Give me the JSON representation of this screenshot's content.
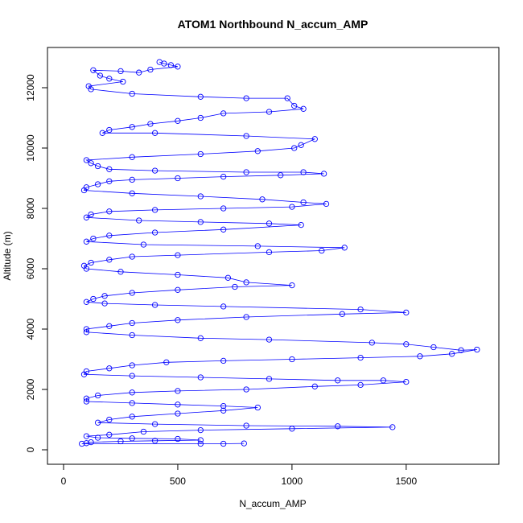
{
  "chart_data": {
    "type": "scatter",
    "title": "ATOM1 Northbound N_accum_AMP",
    "xlabel": "N_accum_AMP",
    "ylabel": "Altitude (m)",
    "xlim": [
      0,
      1850
    ],
    "ylim": [
      0,
      13000
    ],
    "x_ticks": [
      0,
      500,
      1000,
      1500
    ],
    "y_ticks": [
      0,
      2000,
      4000,
      6000,
      8000,
      10000,
      12000
    ],
    "grid": false,
    "point_style": "open-circle-with-connecting-line",
    "color": "#0000ff",
    "series": [
      {
        "values": [
          [
            420,
            12850
          ],
          [
            440,
            12800
          ],
          [
            470,
            12750
          ],
          [
            500,
            12700
          ],
          [
            380,
            12600
          ],
          [
            330,
            12500
          ],
          [
            250,
            12550
          ],
          [
            130,
            12580
          ],
          [
            160,
            12400
          ],
          [
            200,
            12300
          ],
          [
            260,
            12200
          ],
          [
            110,
            12050
          ],
          [
            120,
            11950
          ],
          [
            300,
            11800
          ],
          [
            600,
            11700
          ],
          [
            800,
            11650
          ],
          [
            980,
            11650
          ],
          [
            1010,
            11400
          ],
          [
            1050,
            11300
          ],
          [
            900,
            11200
          ],
          [
            700,
            11150
          ],
          [
            600,
            11000
          ],
          [
            500,
            10900
          ],
          [
            380,
            10800
          ],
          [
            300,
            10700
          ],
          [
            200,
            10600
          ],
          [
            170,
            10500
          ],
          [
            400,
            10500
          ],
          [
            800,
            10400
          ],
          [
            1100,
            10300
          ],
          [
            1040,
            10100
          ],
          [
            1010,
            10000
          ],
          [
            850,
            9900
          ],
          [
            600,
            9800
          ],
          [
            300,
            9700
          ],
          [
            100,
            9600
          ],
          [
            120,
            9500
          ],
          [
            150,
            9400
          ],
          [
            200,
            9300
          ],
          [
            400,
            9250
          ],
          [
            800,
            9200
          ],
          [
            1050,
            9200
          ],
          [
            1140,
            9150
          ],
          [
            950,
            9100
          ],
          [
            700,
            9050
          ],
          [
            500,
            9000
          ],
          [
            300,
            8950
          ],
          [
            200,
            8900
          ],
          [
            150,
            8800
          ],
          [
            100,
            8700
          ],
          [
            90,
            8600
          ],
          [
            300,
            8500
          ],
          [
            600,
            8400
          ],
          [
            870,
            8300
          ],
          [
            1050,
            8200
          ],
          [
            1150,
            8150
          ],
          [
            1000,
            8050
          ],
          [
            700,
            8000
          ],
          [
            400,
            7950
          ],
          [
            200,
            7900
          ],
          [
            120,
            7800
          ],
          [
            100,
            7700
          ],
          [
            330,
            7600
          ],
          [
            600,
            7550
          ],
          [
            900,
            7500
          ],
          [
            1040,
            7450
          ],
          [
            700,
            7300
          ],
          [
            400,
            7200
          ],
          [
            200,
            7100
          ],
          [
            130,
            7000
          ],
          [
            100,
            6900
          ],
          [
            350,
            6800
          ],
          [
            850,
            6750
          ],
          [
            1230,
            6700
          ],
          [
            1130,
            6600
          ],
          [
            900,
            6550
          ],
          [
            500,
            6450
          ],
          [
            300,
            6400
          ],
          [
            200,
            6300
          ],
          [
            120,
            6200
          ],
          [
            90,
            6100
          ],
          [
            100,
            6000
          ],
          [
            250,
            5900
          ],
          [
            500,
            5800
          ],
          [
            720,
            5700
          ],
          [
            800,
            5550
          ],
          [
            1000,
            5450
          ],
          [
            750,
            5400
          ],
          [
            500,
            5300
          ],
          [
            300,
            5200
          ],
          [
            180,
            5100
          ],
          [
            130,
            5000
          ],
          [
            100,
            4900
          ],
          [
            180,
            4850
          ],
          [
            400,
            4800
          ],
          [
            700,
            4750
          ],
          [
            1300,
            4650
          ],
          [
            1500,
            4550
          ],
          [
            1220,
            4500
          ],
          [
            800,
            4400
          ],
          [
            500,
            4300
          ],
          [
            300,
            4200
          ],
          [
            200,
            4100
          ],
          [
            100,
            4000
          ],
          [
            100,
            3900
          ],
          [
            300,
            3800
          ],
          [
            600,
            3700
          ],
          [
            900,
            3650
          ],
          [
            1350,
            3550
          ],
          [
            1500,
            3500
          ],
          [
            1620,
            3400
          ],
          [
            1740,
            3300
          ],
          [
            1810,
            3320
          ],
          [
            1700,
            3180
          ],
          [
            1560,
            3100
          ],
          [
            1300,
            3050
          ],
          [
            1000,
            3000
          ],
          [
            700,
            2950
          ],
          [
            450,
            2900
          ],
          [
            300,
            2800
          ],
          [
            200,
            2700
          ],
          [
            100,
            2600
          ],
          [
            90,
            2500
          ],
          [
            300,
            2450
          ],
          [
            600,
            2400
          ],
          [
            900,
            2350
          ],
          [
            1200,
            2300
          ],
          [
            1400,
            2300
          ],
          [
            1500,
            2250
          ],
          [
            1300,
            2150
          ],
          [
            1100,
            2100
          ],
          [
            800,
            2000
          ],
          [
            500,
            1950
          ],
          [
            300,
            1900
          ],
          [
            150,
            1800
          ],
          [
            100,
            1700
          ],
          [
            100,
            1600
          ],
          [
            300,
            1550
          ],
          [
            500,
            1500
          ],
          [
            700,
            1450
          ],
          [
            850,
            1400
          ],
          [
            700,
            1300
          ],
          [
            500,
            1200
          ],
          [
            300,
            1100
          ],
          [
            200,
            1000
          ],
          [
            150,
            900
          ],
          [
            400,
            850
          ],
          [
            800,
            800
          ],
          [
            1200,
            780
          ],
          [
            1440,
            750
          ],
          [
            1000,
            700
          ],
          [
            600,
            650
          ],
          [
            350,
            600
          ],
          [
            200,
            500
          ],
          [
            100,
            450
          ],
          [
            150,
            400
          ],
          [
            300,
            380
          ],
          [
            500,
            360
          ],
          [
            600,
            320
          ],
          [
            400,
            300
          ],
          [
            250,
            280
          ],
          [
            120,
            250
          ],
          [
            100,
            220
          ],
          [
            80,
            200
          ],
          [
            600,
            200
          ],
          [
            700,
            200
          ],
          [
            790,
            210
          ]
        ]
      }
    ]
  }
}
